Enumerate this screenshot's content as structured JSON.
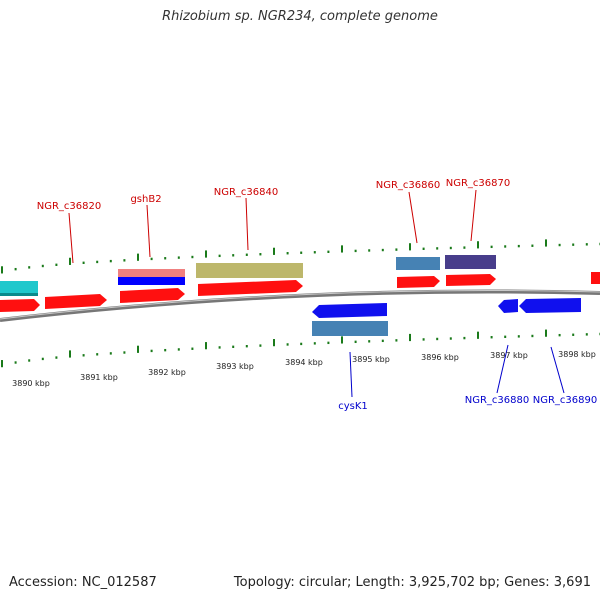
{
  "title": "Rhizobium sp. NGR234, complete genome",
  "footer": {
    "accession": "Accession: NC_012587",
    "topology": "Topology: circular; Length: 3,925,702 bp; Genes: 3,691"
  },
  "colors": {
    "background": "#ffffff",
    "backbone": "#888888",
    "tick": "#1a7a1a",
    "forward_gene": "#ff0000",
    "reverse_gene": "#0000ee",
    "forward_label": "#cc0000",
    "reverse_label": "#0000cc"
  },
  "scale": {
    "unit": "kbp",
    "ticks": [
      "3890 kbp",
      "3891 kbp",
      "3892 kbp",
      "3893 kbp",
      "3894 kbp",
      "3895 kbp",
      "3896 kbp",
      "3897 kbp",
      "3898 kbp"
    ]
  },
  "genes": {
    "forward": [
      "NGR_c36820",
      "gshB2",
      "NGR_c36840",
      "NGR_c36860",
      "NGR_c36870"
    ],
    "reverse": [
      "cysK1",
      "NGR_c36880",
      "NGR_c36890"
    ]
  }
}
